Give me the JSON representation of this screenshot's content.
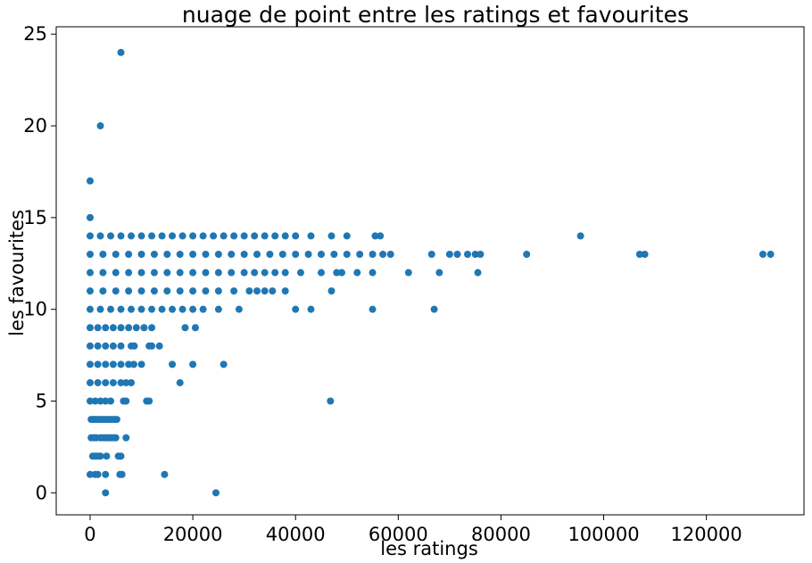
{
  "chart_data": {
    "type": "scatter",
    "title": "nuage de point entre les ratings et favourites",
    "xlabel": "les ratings",
    "ylabel": "les favourites",
    "xlim": [
      -6600,
      139000
    ],
    "ylim": [
      -1.2,
      25.4
    ],
    "xticks": [
      0,
      20000,
      40000,
      60000,
      80000,
      100000,
      120000
    ],
    "yticks": [
      0,
      5,
      10,
      15,
      20,
      25
    ],
    "grid": false,
    "marker_color": "#1f77b4",
    "points": [
      [
        6000,
        24
      ],
      [
        2000,
        20
      ],
      [
        0,
        17
      ],
      [
        0,
        15
      ],
      [
        3000,
        0
      ],
      [
        24500,
        0
      ],
      [
        0,
        1
      ],
      [
        1000,
        1
      ],
      [
        1500,
        1
      ],
      [
        3000,
        1
      ],
      [
        5800,
        1
      ],
      [
        6200,
        1
      ],
      [
        14500,
        1
      ],
      [
        500,
        2
      ],
      [
        1000,
        2
      ],
      [
        1500,
        2
      ],
      [
        2000,
        2
      ],
      [
        3200,
        2
      ],
      [
        5500,
        2
      ],
      [
        6000,
        2
      ],
      [
        200,
        3
      ],
      [
        800,
        3
      ],
      [
        1200,
        3
      ],
      [
        2000,
        3
      ],
      [
        2500,
        3
      ],
      [
        3000,
        3
      ],
      [
        3500,
        3
      ],
      [
        4000,
        3
      ],
      [
        4500,
        3
      ],
      [
        5000,
        3
      ],
      [
        7000,
        3
      ],
      [
        200,
        4
      ],
      [
        700,
        4
      ],
      [
        1200,
        4
      ],
      [
        1700,
        4
      ],
      [
        2200,
        4
      ],
      [
        2700,
        4
      ],
      [
        3200,
        4
      ],
      [
        3700,
        4
      ],
      [
        4200,
        4
      ],
      [
        4700,
        4
      ],
      [
        5200,
        4
      ],
      [
        0,
        5
      ],
      [
        1000,
        5
      ],
      [
        2000,
        5
      ],
      [
        3000,
        5
      ],
      [
        4000,
        5
      ],
      [
        6500,
        5
      ],
      [
        7000,
        5
      ],
      [
        11000,
        5
      ],
      [
        11500,
        5
      ],
      [
        46800,
        5
      ],
      [
        0,
        6
      ],
      [
        1500,
        6
      ],
      [
        3000,
        6
      ],
      [
        4500,
        6
      ],
      [
        6000,
        6
      ],
      [
        7000,
        6
      ],
      [
        8000,
        6
      ],
      [
        17500,
        6
      ],
      [
        0,
        7
      ],
      [
        1500,
        7
      ],
      [
        3000,
        7
      ],
      [
        4500,
        7
      ],
      [
        6000,
        7
      ],
      [
        7500,
        7
      ],
      [
        8500,
        7
      ],
      [
        10000,
        7
      ],
      [
        16000,
        7
      ],
      [
        20000,
        7
      ],
      [
        26000,
        7
      ],
      [
        0,
        8
      ],
      [
        1500,
        8
      ],
      [
        3000,
        8
      ],
      [
        4500,
        8
      ],
      [
        6000,
        8
      ],
      [
        8000,
        8
      ],
      [
        8600,
        8
      ],
      [
        11500,
        8
      ],
      [
        12000,
        8
      ],
      [
        13500,
        8
      ],
      [
        0,
        9
      ],
      [
        1500,
        9
      ],
      [
        3000,
        9
      ],
      [
        4500,
        9
      ],
      [
        6000,
        9
      ],
      [
        7500,
        9
      ],
      [
        9000,
        9
      ],
      [
        10500,
        9
      ],
      [
        12000,
        9
      ],
      [
        18500,
        9
      ],
      [
        20500,
        9
      ],
      [
        0,
        10
      ],
      [
        2000,
        10
      ],
      [
        4000,
        10
      ],
      [
        6000,
        10
      ],
      [
        8000,
        10
      ],
      [
        10000,
        10
      ],
      [
        12000,
        10
      ],
      [
        14000,
        10
      ],
      [
        16000,
        10
      ],
      [
        18000,
        10
      ],
      [
        20000,
        10
      ],
      [
        22000,
        10
      ],
      [
        25000,
        10
      ],
      [
        29000,
        10
      ],
      [
        40000,
        10
      ],
      [
        43000,
        10
      ],
      [
        55000,
        10
      ],
      [
        67000,
        10
      ],
      [
        0,
        11
      ],
      [
        2500,
        11
      ],
      [
        5000,
        11
      ],
      [
        7500,
        11
      ],
      [
        10000,
        11
      ],
      [
        12500,
        11
      ],
      [
        15000,
        11
      ],
      [
        17500,
        11
      ],
      [
        20000,
        11
      ],
      [
        22500,
        11
      ],
      [
        25000,
        11
      ],
      [
        28000,
        11
      ],
      [
        31000,
        11
      ],
      [
        32500,
        11
      ],
      [
        34000,
        11
      ],
      [
        35500,
        11
      ],
      [
        38000,
        11
      ],
      [
        47000,
        11
      ],
      [
        0,
        12
      ],
      [
        2500,
        12
      ],
      [
        5000,
        12
      ],
      [
        7500,
        12
      ],
      [
        10000,
        12
      ],
      [
        12500,
        12
      ],
      [
        15000,
        12
      ],
      [
        17500,
        12
      ],
      [
        20000,
        12
      ],
      [
        22500,
        12
      ],
      [
        25000,
        12
      ],
      [
        27500,
        12
      ],
      [
        30000,
        12
      ],
      [
        32000,
        12
      ],
      [
        34000,
        12
      ],
      [
        36000,
        12
      ],
      [
        38000,
        12
      ],
      [
        41000,
        12
      ],
      [
        45000,
        12
      ],
      [
        48000,
        12
      ],
      [
        49000,
        12
      ],
      [
        52000,
        12
      ],
      [
        55000,
        12
      ],
      [
        62000,
        12
      ],
      [
        68000,
        12
      ],
      [
        75500,
        12
      ],
      [
        0,
        13
      ],
      [
        2500,
        13
      ],
      [
        5000,
        13
      ],
      [
        7500,
        13
      ],
      [
        10000,
        13
      ],
      [
        12500,
        13
      ],
      [
        15000,
        13
      ],
      [
        17500,
        13
      ],
      [
        20000,
        13
      ],
      [
        22500,
        13
      ],
      [
        25000,
        13
      ],
      [
        27500,
        13
      ],
      [
        30000,
        13
      ],
      [
        32500,
        13
      ],
      [
        35000,
        13
      ],
      [
        37500,
        13
      ],
      [
        40000,
        13
      ],
      [
        42500,
        13
      ],
      [
        45000,
        13
      ],
      [
        47500,
        13
      ],
      [
        50000,
        13
      ],
      [
        52500,
        13
      ],
      [
        55000,
        13
      ],
      [
        57000,
        13
      ],
      [
        58500,
        13
      ],
      [
        66500,
        13
      ],
      [
        70000,
        13
      ],
      [
        71500,
        13
      ],
      [
        73500,
        13
      ],
      [
        75000,
        13
      ],
      [
        76000,
        13
      ],
      [
        85000,
        13
      ],
      [
        107000,
        13
      ],
      [
        108000,
        13
      ],
      [
        131000,
        13
      ],
      [
        132500,
        13
      ],
      [
        0,
        14
      ],
      [
        2000,
        14
      ],
      [
        4000,
        14
      ],
      [
        6000,
        14
      ],
      [
        8000,
        14
      ],
      [
        10000,
        14
      ],
      [
        12000,
        14
      ],
      [
        14000,
        14
      ],
      [
        16000,
        14
      ],
      [
        18000,
        14
      ],
      [
        20000,
        14
      ],
      [
        22000,
        14
      ],
      [
        24000,
        14
      ],
      [
        26000,
        14
      ],
      [
        28000,
        14
      ],
      [
        30000,
        14
      ],
      [
        32000,
        14
      ],
      [
        34000,
        14
      ],
      [
        36000,
        14
      ],
      [
        38000,
        14
      ],
      [
        40000,
        14
      ],
      [
        43000,
        14
      ],
      [
        47000,
        14
      ],
      [
        50000,
        14
      ],
      [
        55500,
        14
      ],
      [
        56500,
        14
      ],
      [
        95500,
        14
      ]
    ]
  }
}
